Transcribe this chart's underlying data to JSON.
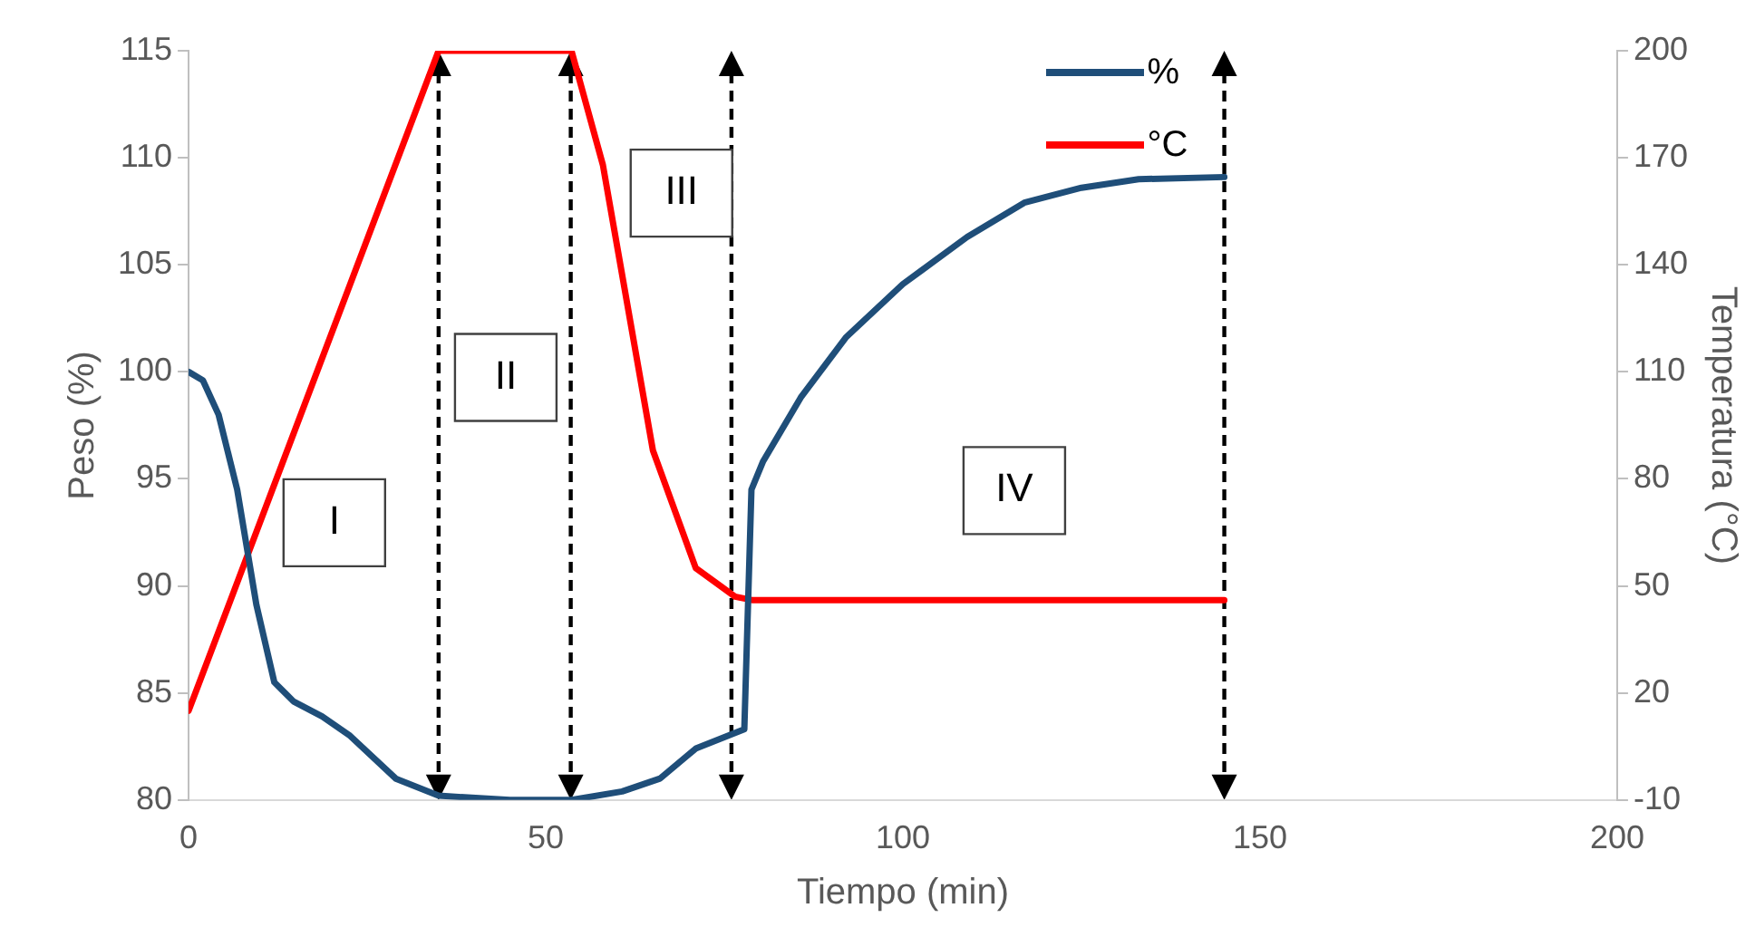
{
  "chart_data": {
    "type": "line",
    "xlabel": "Tiempo (min)",
    "ylabel": "Peso (%)",
    "y2label": "Temperatura (°C)",
    "xlim": [
      0,
      200
    ],
    "xticks": [
      0,
      50,
      100,
      150,
      200
    ],
    "ylim": [
      80,
      115
    ],
    "yticks": [
      80,
      85,
      90,
      95,
      100,
      105,
      110,
      115
    ],
    "y2lim": [
      -10,
      200
    ],
    "y2ticks": [
      -10,
      20,
      50,
      80,
      110,
      140,
      170,
      200
    ],
    "grid": false,
    "legend": "top right",
    "marker": "none",
    "line_style": "solid",
    "series": [
      {
        "name": "%",
        "color": "#1f4e79",
        "x": [
          0,
          2,
          4.2,
          6.8,
          9.5,
          12,
          14.7,
          18.7,
          22.6,
          29,
          35,
          45,
          53.6,
          60.7,
          66,
          71,
          77.8,
          78.8,
          80.4,
          85.7,
          92,
          100,
          109,
          117,
          125,
          133,
          145
        ],
        "values": [
          100,
          99.6,
          98,
          94.5,
          89.1,
          85.5,
          84.6,
          83.9,
          83,
          81,
          80.2,
          80,
          80,
          80.4,
          81,
          82.4,
          83.3,
          94.5,
          95.8,
          98.8,
          101.6,
          104.1,
          106.3,
          107.9,
          108.6,
          109,
          109.1
        ]
      },
      {
        "name": "°C",
        "color": "#ff0000",
        "axis": "y2",
        "x": [
          0,
          35,
          53.6,
          58,
          65,
          71,
          76.5,
          79,
          145
        ],
        "values": [
          15,
          200,
          200,
          168,
          88,
          55,
          47,
          46,
          46
        ]
      }
    ],
    "ref_lines": [
      {
        "axis": "x",
        "value": 35,
        "color": "#000000",
        "line_style": "dashed"
      },
      {
        "axis": "x",
        "value": 53.5,
        "color": "#000000",
        "line_style": "dashed"
      },
      {
        "axis": "x",
        "value": 76,
        "color": "#000000",
        "line_style": "dashed"
      },
      {
        "axis": "x",
        "value": 145,
        "color": "#000000",
        "line_style": "dashed"
      }
    ],
    "annotations": [
      "I",
      "II",
      "III",
      "IV"
    ]
  }
}
